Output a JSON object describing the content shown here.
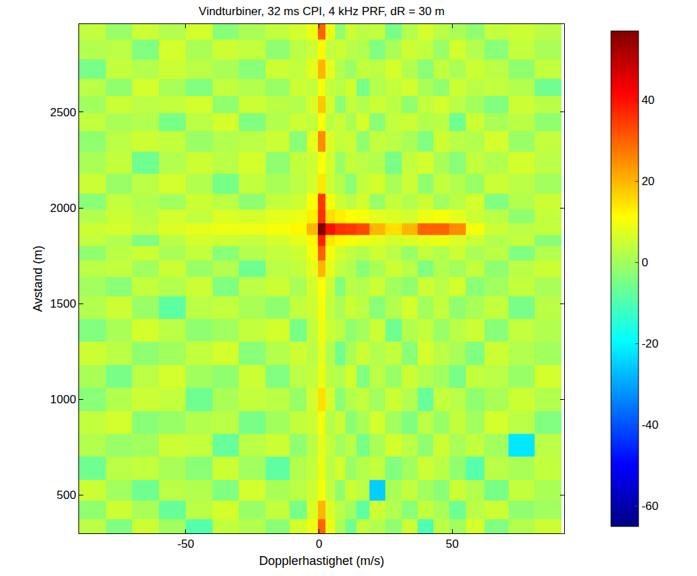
{
  "chart_data": {
    "type": "heatmap",
    "title": "Vindturbiner, 32 ms CPI, 4 kHz PRF, dR = 30 m",
    "x_label": "Dopplerhastighet (m/s)",
    "y_label": "Avstand (m)",
    "color": "jet",
    "xlim": [
      -90,
      92
    ],
    "ylim": [
      300,
      2960
    ],
    "xticks": [
      -50,
      0,
      50
    ],
    "yticks": [
      500,
      1000,
      1500,
      2000,
      2500
    ],
    "colorbar_range": [
      -65,
      57
    ],
    "colorbar_ticks": [
      -60,
      -40,
      -20,
      0,
      20,
      40
    ],
    "x": [
      -85,
      -75,
      -65,
      -55,
      -45,
      -35,
      -25,
      -15,
      -7,
      -2,
      1,
      4,
      8,
      12,
      16,
      22,
      28,
      34,
      40,
      46,
      52,
      58,
      66,
      76,
      86
    ],
    "y": [
      330,
      420,
      520,
      640,
      760,
      880,
      1000,
      1120,
      1240,
      1360,
      1480,
      1600,
      1680,
      1770,
      1830,
      1890,
      1950,
      2030,
      2120,
      2240,
      2350,
      2450,
      2540,
      2630,
      2720,
      2830,
      2930
    ],
    "cells": [
      [
        3,
        -4,
        5,
        0,
        -9,
        4,
        2,
        -3,
        6,
        9,
        30,
        9,
        1,
        -6,
        4,
        2,
        -2,
        5,
        -10,
        3,
        0,
        6,
        -4,
        2,
        5
      ],
      [
        -2,
        5,
        1,
        -7,
        3,
        6,
        -1,
        4,
        -5,
        7,
        20,
        7,
        3,
        0,
        -8,
        5,
        2,
        -3,
        4,
        1,
        -6,
        3,
        5,
        -2,
        0
      ],
      [
        5,
        0,
        -6,
        3,
        2,
        -4,
        6,
        1,
        3,
        5,
        10,
        4,
        -2,
        5,
        3,
        -25,
        1,
        4,
        0,
        -3,
        5,
        2,
        -5,
        4,
        1
      ],
      [
        -6,
        3,
        4,
        1,
        -3,
        5,
        0,
        -8,
        2,
        4,
        9,
        3,
        6,
        -1,
        2,
        4,
        -4,
        0,
        5,
        3,
        -2,
        -9,
        3,
        1,
        4
      ],
      [
        2,
        -1,
        0,
        5,
        4,
        -7,
        3,
        5,
        -2,
        3,
        8,
        4,
        0,
        3,
        -5,
        1,
        6,
        3,
        -2,
        5,
        1,
        4,
        0,
        -22,
        3
      ],
      [
        4,
        6,
        -3,
        -1,
        2,
        3,
        -5,
        0,
        4,
        5,
        10,
        2,
        5,
        -3,
        1,
        6,
        0,
        -4,
        3,
        -1,
        4,
        0,
        6,
        3,
        -4
      ],
      [
        -3,
        2,
        5,
        4,
        -6,
        1,
        4,
        3,
        -1,
        6,
        15,
        6,
        -3,
        2,
        4,
        0,
        5,
        2,
        -7,
        4,
        3,
        -2,
        1,
        5,
        2
      ],
      [
        1,
        -5,
        3,
        6,
        0,
        -2,
        5,
        -4,
        3,
        4,
        9,
        3,
        2,
        6,
        -4,
        3,
        -1,
        5,
        2,
        0,
        -5,
        4,
        3,
        -1,
        6
      ],
      [
        5,
        3,
        -2,
        0,
        4,
        6,
        -3,
        2,
        5,
        3,
        8,
        2,
        -6,
        1,
        5,
        2,
        4,
        -3,
        6,
        3,
        1,
        -4,
        5,
        2,
        0
      ],
      [
        -4,
        1,
        6,
        3,
        -2,
        0,
        4,
        6,
        -5,
        4,
        9,
        5,
        3,
        -2,
        0,
        5,
        -6,
        2,
        4,
        -1,
        3,
        5,
        -3,
        4,
        2
      ],
      [
        2,
        5,
        -1,
        -8,
        3,
        4,
        1,
        -2,
        4,
        5,
        10,
        4,
        1,
        5,
        3,
        -3,
        2,
        6,
        0,
        4,
        -2,
        1,
        4,
        -5,
        3
      ],
      [
        0,
        -3,
        4,
        2,
        5,
        -4,
        3,
        5,
        1,
        6,
        11,
        5,
        -4,
        3,
        2,
        5,
        0,
        -2,
        5,
        3,
        6,
        -3,
        0,
        4,
        1
      ],
      [
        3,
        4,
        0,
        5,
        -1,
        2,
        -6,
        3,
        4,
        8,
        20,
        8,
        4,
        2,
        -3,
        1,
        5,
        3,
        -4,
        2,
        0,
        4,
        -2,
        3,
        5
      ],
      [
        -2,
        3,
        5,
        1,
        4,
        -3,
        2,
        4,
        5,
        10,
        30,
        10,
        6,
        4,
        2,
        5,
        3,
        -1,
        4,
        2,
        5,
        1,
        3,
        -4,
        2
      ],
      [
        4,
        2,
        -4,
        3,
        6,
        5,
        4,
        6,
        8,
        12,
        38,
        14,
        12,
        10,
        9,
        8,
        6,
        7,
        8,
        9,
        7,
        5,
        2,
        4,
        -3
      ],
      [
        5,
        6,
        4,
        7,
        8,
        9,
        9,
        10,
        12,
        20,
        57,
        40,
        36,
        35,
        33,
        20,
        15,
        20,
        30,
        30,
        25,
        10,
        5,
        3,
        4
      ],
      [
        2,
        5,
        3,
        6,
        4,
        7,
        6,
        8,
        9,
        13,
        36,
        15,
        13,
        11,
        10,
        8,
        7,
        6,
        9,
        10,
        8,
        5,
        3,
        -2,
        4
      ],
      [
        -3,
        4,
        2,
        0,
        5,
        3,
        -2,
        4,
        5,
        11,
        35,
        10,
        5,
        3,
        6,
        -1,
        4,
        2,
        5,
        0,
        3,
        6,
        -4,
        2,
        5
      ],
      [
        5,
        -1,
        3,
        6,
        2,
        -5,
        4,
        1,
        3,
        6,
        14,
        5,
        2,
        -3,
        4,
        6,
        1,
        5,
        -2,
        4,
        2,
        -1,
        5,
        3,
        0
      ],
      [
        1,
        4,
        -6,
        2,
        5,
        3,
        6,
        -2,
        4,
        5,
        11,
        6,
        -1,
        4,
        3,
        2,
        -5,
        4,
        6,
        1,
        -3,
        4,
        2,
        6,
        3
      ],
      [
        -2,
        3,
        5,
        4,
        -1,
        2,
        3,
        5,
        -3,
        8,
        25,
        7,
        4,
        5,
        -2,
        4,
        3,
        1,
        -4,
        5,
        3,
        2,
        6,
        -1,
        4
      ],
      [
        4,
        1,
        2,
        -5,
        3,
        6,
        -4,
        2,
        5,
        4,
        11,
        3,
        5,
        1,
        6,
        -3,
        4,
        5,
        2,
        3,
        -6,
        5,
        1,
        3,
        -2
      ],
      [
        0,
        5,
        3,
        4,
        6,
        -2,
        5,
        3,
        2,
        7,
        18,
        6,
        -3,
        4,
        2,
        5,
        3,
        -2,
        4,
        6,
        3,
        0,
        -4,
        5,
        3
      ],
      [
        3,
        -2,
        6,
        1,
        -4,
        4,
        2,
        -1,
        5,
        4,
        10,
        4,
        3,
        6,
        -5,
        2,
        4,
        6,
        1,
        -2,
        5,
        3,
        4,
        2,
        -6
      ],
      [
        -5,
        4,
        2,
        5,
        3,
        1,
        -3,
        5,
        4,
        8,
        20,
        8,
        2,
        -1,
        4,
        3,
        6,
        2,
        -3,
        4,
        1,
        5,
        3,
        -2,
        4
      ],
      [
        2,
        3,
        -4,
        6,
        1,
        5,
        4,
        -2,
        3,
        5,
        12,
        4,
        5,
        3,
        2,
        -4,
        1,
        5,
        4,
        -1,
        6,
        2,
        -3,
        4,
        1
      ],
      [
        4,
        -1,
        5,
        2,
        6,
        -3,
        1,
        4,
        6,
        9,
        30,
        9,
        -2,
        5,
        3,
        4,
        -5,
        2,
        6,
        3,
        1,
        -2,
        4,
        5,
        3
      ]
    ]
  }
}
